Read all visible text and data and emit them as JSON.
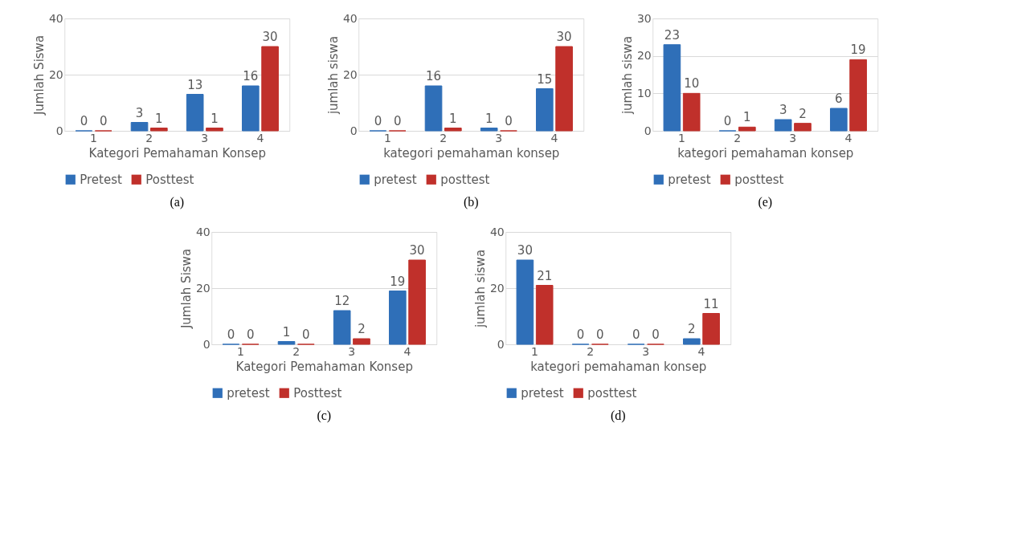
{
  "chart_data": [
    {
      "type": "bar",
      "categories": [
        "1",
        "2",
        "3",
        "4"
      ],
      "xlabel": "Kategori Pemahaman Konsep",
      "ylabel": "Jumlah Siswa",
      "ylim": [
        0,
        40
      ],
      "yticks": [
        0,
        20,
        40
      ],
      "grid": "y",
      "legend": "bottom",
      "data_labels": true,
      "annotations": [
        "(a)"
      ],
      "series": [
        {
          "name": "Pretest",
          "color": "#2f6fb8",
          "values": [
            0,
            3,
            13,
            16
          ]
        },
        {
          "name": "Posttest",
          "color": "#c0302b",
          "values": [
            0,
            1,
            1,
            30
          ]
        }
      ]
    },
    {
      "type": "bar",
      "categories": [
        "1",
        "2",
        "3",
        "4"
      ],
      "xlabel": "kategori pemahaman konsep",
      "ylabel": "jumlah siswa",
      "ylim": [
        0,
        40
      ],
      "yticks": [
        0,
        20,
        40
      ],
      "grid": "y",
      "legend": "bottom",
      "data_labels": true,
      "annotations": [
        "(b)"
      ],
      "series": [
        {
          "name": "pretest",
          "color": "#2f6fb8",
          "values": [
            0,
            16,
            1,
            15
          ]
        },
        {
          "name": "posttest",
          "color": "#c0302b",
          "values": [
            0,
            1,
            0,
            30
          ]
        }
      ]
    },
    {
      "type": "bar",
      "categories": [
        "1",
        "2",
        "3",
        "4"
      ],
      "xlabel": "kategori pemahaman konsep",
      "ylabel": "jumlah siswa",
      "ylim": [
        0,
        30
      ],
      "yticks": [
        0,
        10,
        20,
        30
      ],
      "grid": "y",
      "legend": "bottom",
      "data_labels": true,
      "annotations": [
        "(e)"
      ],
      "series": [
        {
          "name": "pretest",
          "color": "#2f6fb8",
          "values": [
            23,
            0,
            3,
            6
          ]
        },
        {
          "name": "posttest",
          "color": "#c0302b",
          "values": [
            10,
            1,
            2,
            19
          ]
        }
      ]
    },
    {
      "type": "bar",
      "categories": [
        "1",
        "2",
        "3",
        "4"
      ],
      "xlabel": "Kategori Pemahaman Konsep",
      "ylabel": "Jumlah Siswa",
      "ylim": [
        0,
        40
      ],
      "yticks": [
        0,
        20,
        40
      ],
      "grid": "y",
      "legend": "bottom",
      "data_labels": true,
      "annotations": [
        "(c)"
      ],
      "series": [
        {
          "name": "pretest",
          "color": "#2f6fb8",
          "values": [
            0,
            1,
            12,
            19
          ]
        },
        {
          "name": "Posttest",
          "color": "#c0302b",
          "values": [
            0,
            0,
            2,
            30
          ]
        }
      ]
    },
    {
      "type": "bar",
      "categories": [
        "1",
        "2",
        "3",
        "4"
      ],
      "xlabel": "kategori pemahaman konsep",
      "ylabel": "jumlah siswa",
      "ylim": [
        0,
        40
      ],
      "yticks": [
        0,
        20,
        40
      ],
      "grid": "y",
      "legend": "bottom",
      "data_labels": true,
      "annotations": [
        "(d)"
      ],
      "series": [
        {
          "name": "pretest",
          "color": "#2f6fb8",
          "values": [
            30,
            0,
            0,
            2
          ]
        },
        {
          "name": "posttest",
          "color": "#c0302b",
          "values": [
            21,
            0,
            0,
            11
          ]
        }
      ]
    }
  ]
}
